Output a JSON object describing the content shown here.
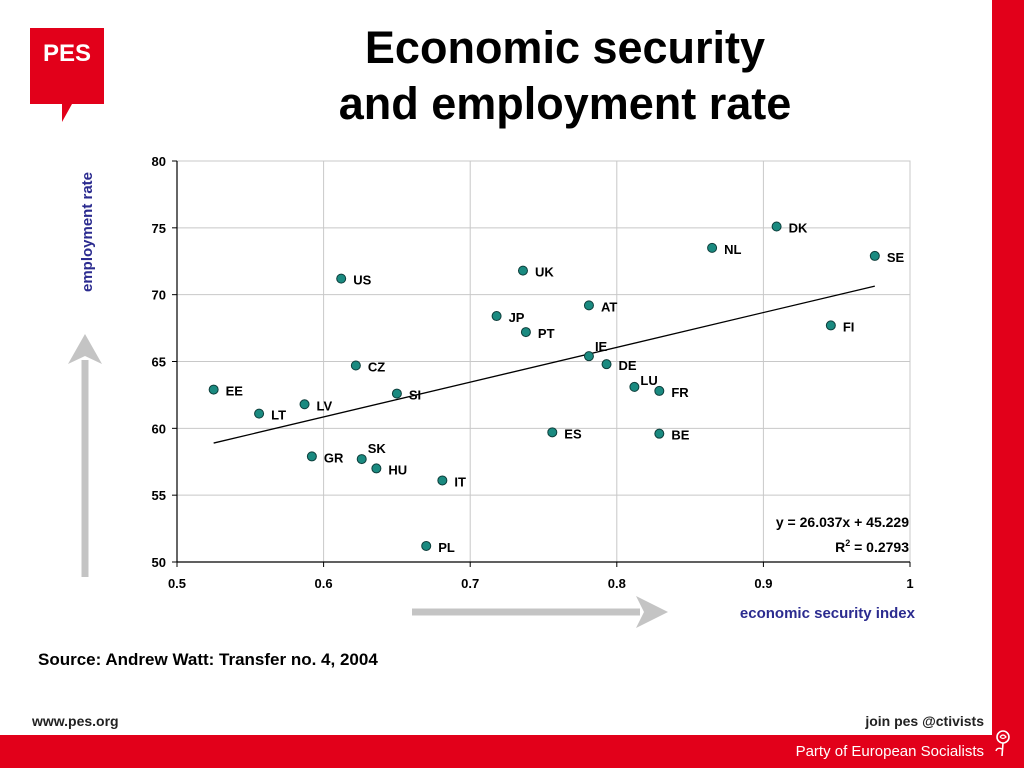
{
  "logo": {
    "text": "PES",
    "color": "#e2001a"
  },
  "title_lines": [
    "Economic security",
    "and employment rate"
  ],
  "source": "Source: Andrew Watt: Transfer no. 4, 2004",
  "footer": {
    "url": "www.pes.org",
    "join": "join pes @ctivists",
    "party": "Party of European Socialists"
  },
  "colors": {
    "brand_red": "#e2001a",
    "point_fill": "#1a8a80",
    "axis_label": "#2b2b8f",
    "arrow": "#c4c4c4"
  },
  "chart_data": {
    "type": "scatter",
    "title": "Economic security and employment rate",
    "xlabel": "economic security index",
    "ylabel": "employment rate",
    "xlim": [
      0.5,
      1
    ],
    "ylim": [
      50,
      80
    ],
    "x_ticks": [
      0.5,
      0.6,
      0.7,
      0.8,
      0.9,
      1
    ],
    "x_tick_labels": [
      "0.5",
      "0.6",
      "0.7",
      "0.8",
      "0.9",
      "1"
    ],
    "y_ticks": [
      50,
      55,
      60,
      65,
      70,
      75,
      80
    ],
    "grid": true,
    "points": [
      {
        "label": "EE",
        "x": 0.525,
        "y": 62.9
      },
      {
        "label": "LT",
        "x": 0.556,
        "y": 61.1
      },
      {
        "label": "LV",
        "x": 0.587,
        "y": 61.8
      },
      {
        "label": "GR",
        "x": 0.592,
        "y": 57.9
      },
      {
        "label": "US",
        "x": 0.612,
        "y": 71.2
      },
      {
        "label": "CZ",
        "x": 0.622,
        "y": 64.7
      },
      {
        "label": "SK",
        "x": 0.626,
        "y": 57.7
      },
      {
        "label": "HU",
        "x": 0.636,
        "y": 57.0
      },
      {
        "label": "SI",
        "x": 0.65,
        "y": 62.6
      },
      {
        "label": "PL",
        "x": 0.67,
        "y": 51.2
      },
      {
        "label": "IT",
        "x": 0.681,
        "y": 56.1
      },
      {
        "label": "JP",
        "x": 0.718,
        "y": 68.4
      },
      {
        "label": "UK",
        "x": 0.736,
        "y": 71.8
      },
      {
        "label": "PT",
        "x": 0.738,
        "y": 67.2
      },
      {
        "label": "ES",
        "x": 0.756,
        "y": 59.7
      },
      {
        "label": "AT",
        "x": 0.781,
        "y": 69.2
      },
      {
        "label": "IE",
        "x": 0.781,
        "y": 65.4
      },
      {
        "label": "DE",
        "x": 0.793,
        "y": 64.8
      },
      {
        "label": "LU",
        "x": 0.812,
        "y": 63.1
      },
      {
        "label": "FR",
        "x": 0.829,
        "y": 62.8
      },
      {
        "label": "BE",
        "x": 0.829,
        "y": 59.6
      },
      {
        "label": "NL",
        "x": 0.865,
        "y": 73.5
      },
      {
        "label": "DK",
        "x": 0.909,
        "y": 75.1
      },
      {
        "label": "FI",
        "x": 0.946,
        "y": 67.7
      },
      {
        "label": "SE",
        "x": 0.976,
        "y": 72.9
      }
    ],
    "trendline": {
      "slope": 26.037,
      "intercept": 45.229,
      "x_range": [
        0.525,
        0.976
      ],
      "equation": "y = 26.037x + 45.229",
      "r2_label": "R",
      "r2_sup": "2",
      "r2_value": " =  0.2793"
    }
  }
}
